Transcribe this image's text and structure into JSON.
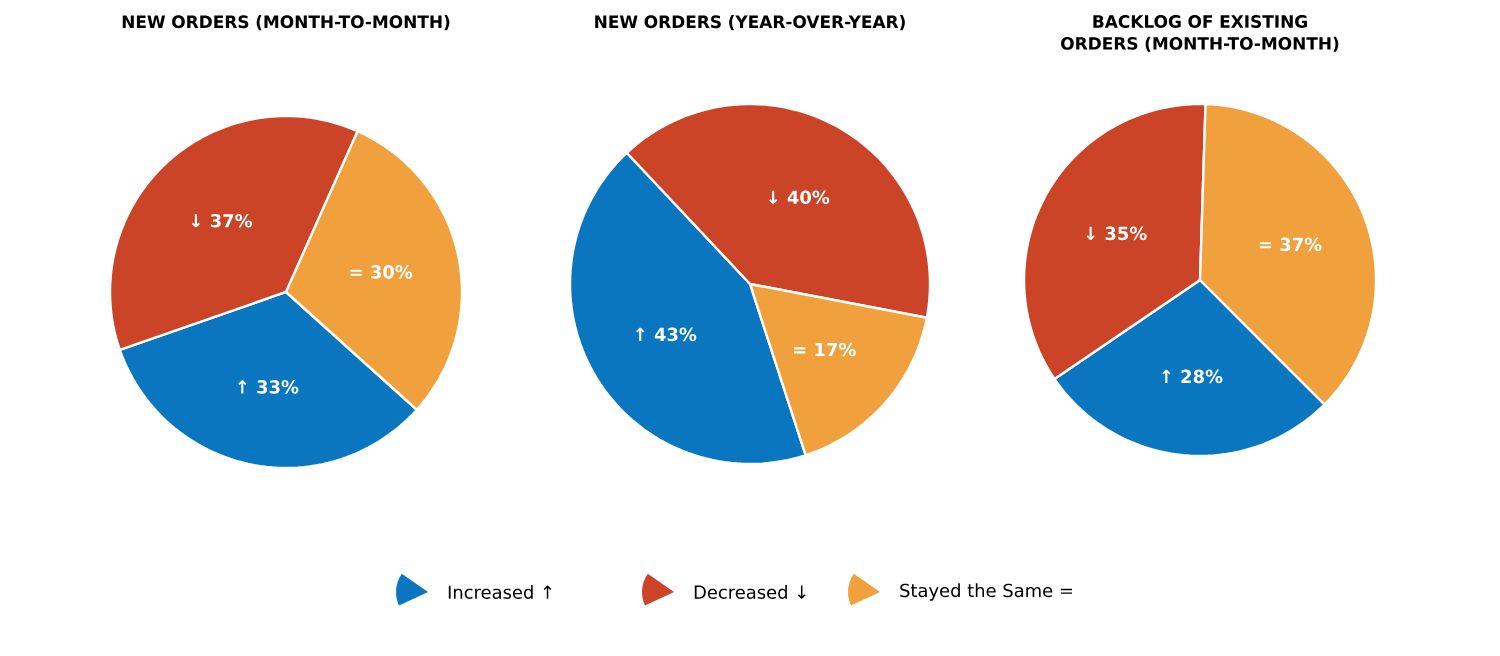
{
  "chart_data": [
    {
      "type": "pie",
      "title": "NEW ORDERS (MONTH-TO-MONTH)",
      "categories": [
        "Increased ↑",
        "Decreased ↓",
        "Stayed the Same ="
      ],
      "values": [
        33,
        37,
        30
      ],
      "value_labels": [
        "↑ 33%",
        "↓ 37%",
        "= 30%"
      ],
      "colors": [
        "#0b76c0",
        "#cc4428",
        "#f0a03c"
      ],
      "legend": "bottom"
    },
    {
      "type": "pie",
      "title": "NEW ORDERS (YEAR-OVER-YEAR)",
      "values": [
        43,
        40,
        17
      ],
      "value_labels": [
        "↑ 43%",
        "↓ 40%",
        "= 17%"
      ],
      "colors": [
        "#0b76c0",
        "#cc4428",
        "#f0a03c"
      ]
    },
    {
      "type": "pie",
      "title": "BACKLOG OF EXISTING ORDERS (MONTH-TO-MONTH)",
      "values": [
        28,
        35,
        37
      ],
      "value_labels": [
        "↑ 28%",
        "↓ 35%",
        "= 37%"
      ],
      "colors": [
        "#0b76c0",
        "#cc4428",
        "#f0a03c"
      ]
    }
  ]
}
